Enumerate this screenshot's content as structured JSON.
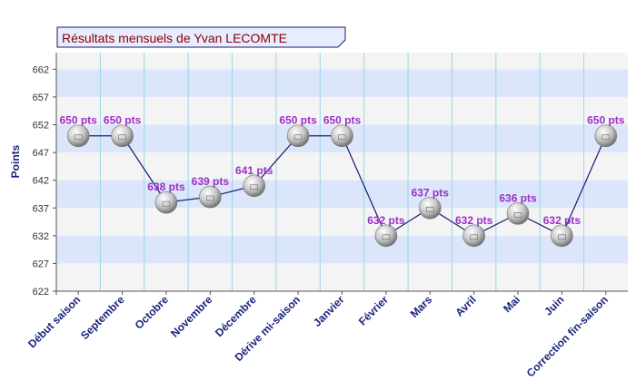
{
  "chart_data": {
    "type": "line",
    "title": "Résultats mensuels de Yvan LECOMTE",
    "xlabel": "",
    "ylabel": "Points",
    "ylim": [
      622,
      665
    ],
    "yticks": [
      622,
      627,
      632,
      637,
      642,
      647,
      652,
      657,
      662
    ],
    "categories": [
      "Début saison",
      "Septembre",
      "Octobre",
      "Novembre",
      "Décembre",
      "Dérive mi-saison",
      "Janvier",
      "Février",
      "Mars",
      "Avril",
      "Mai",
      "Juin",
      "Correction fin-saison"
    ],
    "series": [
      {
        "values": [
          650,
          650,
          638,
          639,
          641,
          650,
          650,
          632,
          637,
          632,
          636,
          632,
          650
        ],
        "point_labels": [
          "650 pts",
          "650 pts",
          "638 pts",
          "639 pts",
          "641 pts",
          "650 pts",
          "650 pts",
          "632 pts",
          "637 pts",
          "632 pts",
          "636 pts",
          "632 pts",
          "650 pts"
        ]
      }
    ],
    "grid": true,
    "colors": {
      "title_text": "#8b0000",
      "title_bg": "#e8ecff",
      "band_blue": "#dce6fb",
      "band_gray": "#f4f4f4",
      "vgrid": "#9bd4e8",
      "line": "#1a1a6e",
      "point_label": "#9b30c8",
      "axis_label": "#1a237e",
      "tick_label": "#333333"
    }
  }
}
